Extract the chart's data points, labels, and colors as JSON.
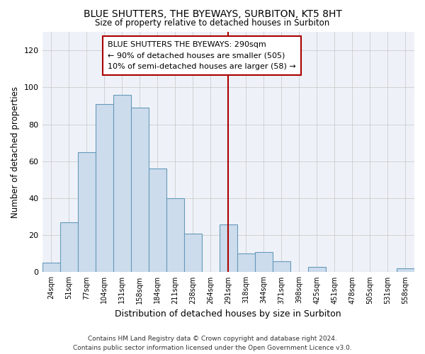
{
  "title": "BLUE SHUTTERS, THE BYEWAYS, SURBITON, KT5 8HT",
  "subtitle": "Size of property relative to detached houses in Surbiton",
  "xlabel": "Distribution of detached houses by size in Surbiton",
  "ylabel": "Number of detached properties",
  "bar_color": "#ccdcec",
  "bar_edge_color": "#6699bb",
  "annotation_box_color": "#aa0000",
  "annotation_line1": "BLUE SHUTTERS THE BYEWAYS: 290sqm",
  "annotation_line2": "← 90% of detached houses are smaller (505)",
  "annotation_line3": "10% of semi-detached houses are larger (58) →",
  "subject_line_color": "#aa0000",
  "subject_idx": 10,
  "categories": [
    "24sqm",
    "51sqm",
    "77sqm",
    "104sqm",
    "131sqm",
    "158sqm",
    "184sqm",
    "211sqm",
    "238sqm",
    "264sqm",
    "291sqm",
    "318sqm",
    "344sqm",
    "371sqm",
    "398sqm",
    "425sqm",
    "451sqm",
    "478sqm",
    "505sqm",
    "531sqm",
    "558sqm"
  ],
  "values": [
    5,
    27,
    65,
    91,
    96,
    89,
    56,
    40,
    21,
    0,
    26,
    10,
    11,
    6,
    0,
    3,
    0,
    0,
    0,
    0,
    2
  ],
  "ylim": [
    0,
    130
  ],
  "yticks": [
    0,
    20,
    40,
    60,
    80,
    100,
    120
  ],
  "footer_line1": "Contains HM Land Registry data © Crown copyright and database right 2024.",
  "footer_line2": "Contains public sector information licensed under the Open Government Licence v3.0.",
  "background_color": "#ffffff",
  "plot_background_color": "#eef2f8",
  "grid_color": "#cccccc"
}
